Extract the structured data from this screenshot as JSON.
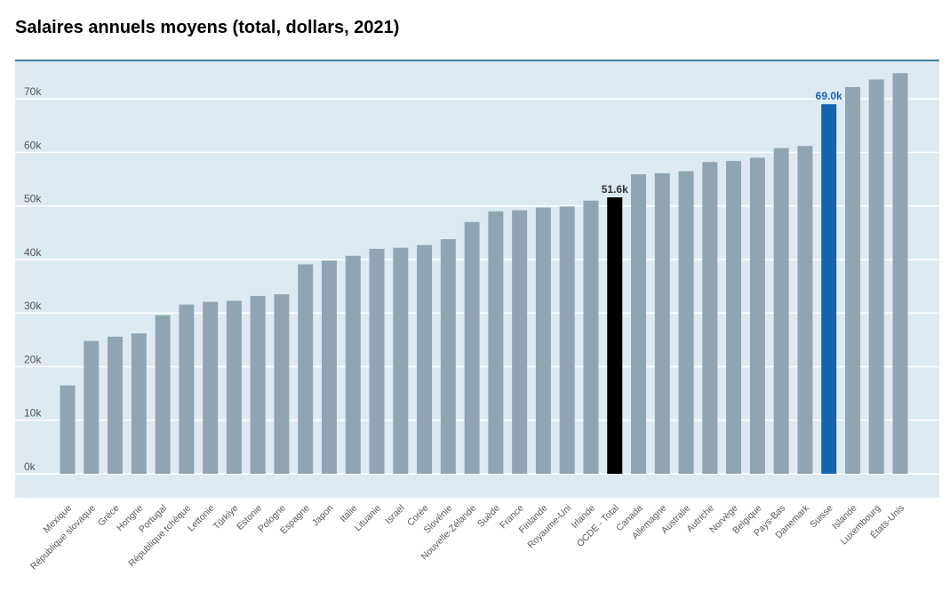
{
  "chart_data": {
    "type": "bar",
    "title": "Salaires annuels moyens (total, dollars, 2021)",
    "xlabel": "",
    "ylabel": "",
    "ylim": [
      0,
      77000
    ],
    "yticks": [
      0,
      10000,
      20000,
      30000,
      40000,
      50000,
      60000,
      70000
    ],
    "ytick_labels": [
      "0k",
      "10k",
      "20k",
      "30k",
      "40k",
      "50k",
      "60k",
      "70k"
    ],
    "grid": true,
    "categories": [
      "Mexique",
      "République slovaque",
      "Grèce",
      "Hongrie",
      "Portugal",
      "République tchèque",
      "Lettonie",
      "Türkiye",
      "Estonie",
      "Pologne",
      "Espagne",
      "Japon",
      "Italie",
      "Lituanie",
      "Israël",
      "Corée",
      "Slovénie",
      "Nouvelle-Zélande",
      "Suède",
      "France",
      "Finlande",
      "Royaume-Uni",
      "Irlande",
      "OCDE - Total",
      "Canada",
      "Allemagne",
      "Australie",
      "Autriche",
      "Norvège",
      "Belgique",
      "Pays-Bas",
      "Danemark",
      "Suisse",
      "Islande",
      "Luxembourg",
      "États-Unis"
    ],
    "values": [
      16500,
      24800,
      25600,
      26200,
      29600,
      31600,
      32100,
      32300,
      33200,
      33500,
      39100,
      39800,
      40700,
      42000,
      42200,
      42700,
      43800,
      47000,
      49000,
      49200,
      49700,
      49900,
      51000,
      51600,
      55900,
      56100,
      56500,
      58200,
      58400,
      59000,
      60800,
      61200,
      69000,
      72200,
      73600,
      74800
    ],
    "highlights": [
      {
        "category": "OCDE - Total",
        "color": "#000000",
        "label": "51.6k",
        "label_color": "#333333"
      },
      {
        "category": "Suisse",
        "color": "#1565ae",
        "label": "69.0k",
        "label_color": "#1565ae"
      }
    ],
    "default_color": "#8fa5b2",
    "category_label_color": "#595959",
    "highlight_category_label_color": "#1565ae",
    "highlight_category": "Suisse"
  }
}
